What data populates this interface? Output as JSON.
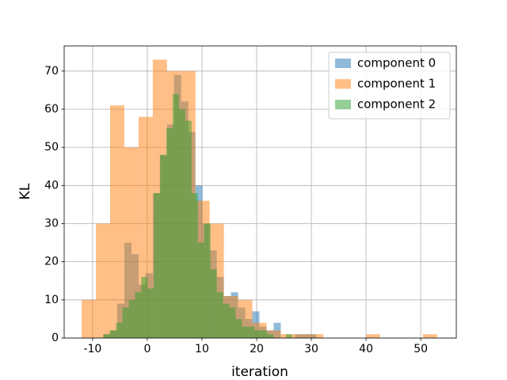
{
  "chart_data": {
    "type": "histogram",
    "xlabel": "iteration",
    "ylabel": "KL",
    "xlim": [
      -15.2,
      56.5
    ],
    "ylim": [
      0,
      76.6
    ],
    "xticks": [
      -10,
      0,
      10,
      20,
      30,
      40,
      50
    ],
    "yticks": [
      0,
      10,
      20,
      30,
      40,
      50,
      60,
      70
    ],
    "grid": true,
    "legend": "upper right",
    "opacity": 0.5,
    "series": [
      {
        "name": "component 0",
        "color": "#1f77b4",
        "bins": [
          -8.1,
          -6.8,
          -5.5,
          -4.2,
          -2.9,
          -1.6,
          -0.3,
          1.0,
          2.3,
          3.6,
          4.9,
          6.2,
          7.5,
          8.8,
          10.1,
          11.4,
          12.7,
          14.0,
          15.3,
          16.6,
          17.9,
          19.2,
          20.5,
          21.8,
          23.1,
          24.4,
          25.7,
          27.0,
          28.3,
          29.6,
          30.9
        ],
        "values": [
          1,
          2,
          9,
          25,
          22,
          14,
          17,
          38,
          48,
          56,
          69,
          62,
          54,
          40,
          30,
          23,
          16,
          11,
          12,
          8,
          5,
          7,
          3,
          2,
          4,
          0,
          0,
          1,
          1,
          1
        ]
      },
      {
        "name": "component 1",
        "color": "#ff7f0e",
        "bins": [
          -12.0,
          -9.4,
          -6.8,
          -4.2,
          -1.6,
          1.0,
          3.6,
          6.2,
          8.8,
          11.4,
          14.0,
          16.6,
          19.2,
          21.8,
          24.4,
          27.0,
          29.6,
          32.2,
          34.8,
          37.4,
          40.0,
          42.6,
          45.2,
          47.8,
          50.4,
          53.0
        ],
        "values": [
          10,
          30,
          61,
          50,
          58,
          73,
          70,
          70,
          36,
          30,
          11,
          10,
          4,
          2,
          1,
          1,
          1,
          0,
          0,
          0,
          1,
          0,
          0,
          0,
          1
        ]
      },
      {
        "name": "component 2",
        "color": "#2ca02c",
        "bins": [
          -8.0,
          -6.85,
          -5.7,
          -4.55,
          -3.4,
          -2.25,
          -1.1,
          0.05,
          1.2,
          2.35,
          3.5,
          4.65,
          5.8,
          6.95,
          8.1,
          9.25,
          10.4,
          11.55,
          12.7,
          13.85,
          15.0,
          16.15,
          17.3,
          18.45,
          19.6,
          20.75,
          21.9,
          23.05,
          24.2,
          25.35,
          26.5
        ],
        "values": [
          1,
          2,
          4,
          8,
          10,
          12,
          16,
          13,
          38,
          48,
          55,
          64,
          60,
          57,
          38,
          25,
          30,
          18,
          12,
          9,
          8,
          5,
          3,
          3,
          2,
          2,
          1,
          0,
          0,
          1
        ]
      }
    ]
  }
}
